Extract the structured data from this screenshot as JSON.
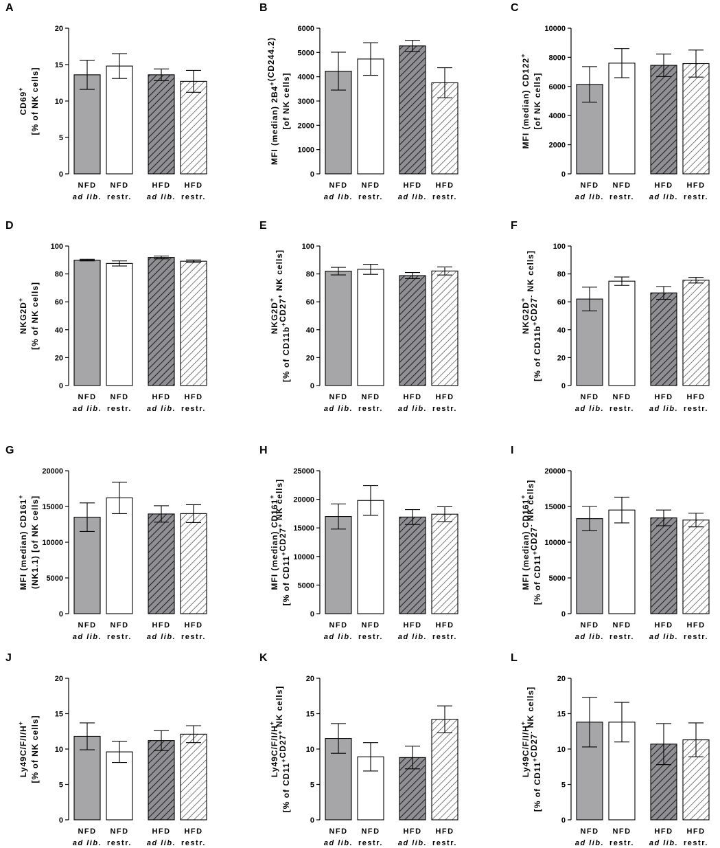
{
  "colors": {
    "nfd_ad_lib_fill": "#a6a6a8",
    "nfd_restr_fill": "#ffffff",
    "hfd_ad_lib_fill": "#909094",
    "hfd_ad_lib_hatch": "#222222",
    "hfd_restr_hatch": "#333333",
    "axis": "#000000"
  },
  "chart_data": [
    {
      "panel": "A",
      "type": "bar",
      "ylabel_lines": [
        [
          {
            "t": "CD69"
          },
          {
            "t": "+",
            "sup": true
          }
        ],
        [
          {
            "t": "[% of NK cells]"
          }
        ]
      ],
      "ylim": [
        0,
        20
      ],
      "yticks": [
        0,
        5,
        10,
        15,
        20
      ],
      "categories": [
        [
          "NFD",
          "ad lib."
        ],
        [
          "NFD",
          "restr."
        ],
        [
          "HFD",
          "ad lib."
        ],
        [
          "HFD",
          "restr."
        ]
      ],
      "values": [
        13.6,
        14.8,
        13.6,
        12.7
      ],
      "errors": [
        2.0,
        1.7,
        0.8,
        1.5
      ]
    },
    {
      "panel": "B",
      "type": "bar",
      "ylabel_lines": [
        [
          {
            "t": "MFI (median) 2B4"
          },
          {
            "t": "+",
            "sup": true
          },
          {
            "t": "(CD244.2)"
          }
        ],
        [
          {
            "t": "[of NK cells]"
          }
        ]
      ],
      "ylim": [
        0,
        6000
      ],
      "yticks": [
        0,
        1000,
        2000,
        3000,
        4000,
        5000,
        6000
      ],
      "categories": [
        [
          "NFD",
          "ad lib."
        ],
        [
          "NFD",
          "restr."
        ],
        [
          "HFD",
          "ad lib."
        ],
        [
          "HFD",
          "restr."
        ]
      ],
      "values": [
        4230,
        4730,
        5270,
        3750
      ],
      "errors": [
        780,
        670,
        230,
        620
      ]
    },
    {
      "panel": "C",
      "type": "bar",
      "ylabel_lines": [
        [
          {
            "t": "MFI (median) CD122"
          },
          {
            "t": "+",
            "sup": true
          }
        ],
        [
          {
            "t": "[of NK cells]"
          }
        ]
      ],
      "ylim": [
        0,
        10000
      ],
      "yticks": [
        0,
        2000,
        4000,
        6000,
        8000,
        10000
      ],
      "categories": [
        [
          "NFD",
          "ad lib."
        ],
        [
          "NFD",
          "restr."
        ],
        [
          "HFD",
          "ad lib."
        ],
        [
          "HFD",
          "restr."
        ]
      ],
      "values": [
        6140,
        7600,
        7450,
        7570
      ],
      "errors": [
        1220,
        1000,
        770,
        930
      ]
    },
    {
      "panel": "D",
      "type": "bar",
      "ylabel_lines": [
        [
          {
            "t": "NKG2D"
          },
          {
            "t": "+",
            "sup": true
          }
        ],
        [
          {
            "t": "[% of NK cells]"
          }
        ]
      ],
      "ylim": [
        0,
        100
      ],
      "yticks": [
        0,
        20,
        40,
        60,
        80,
        100
      ],
      "categories": [
        [
          "NFD",
          "ad lib."
        ],
        [
          "NFD",
          "restr."
        ],
        [
          "HFD",
          "ad lib."
        ],
        [
          "HFD",
          "restr."
        ]
      ],
      "values": [
        89.9,
        87.5,
        91.8,
        89.1
      ],
      "errors": [
        0.6,
        1.8,
        1.0,
        0.9
      ]
    },
    {
      "panel": "E",
      "type": "bar",
      "ylabel_lines": [
        [
          {
            "t": "NKG2D"
          },
          {
            "t": "+",
            "sup": true
          }
        ],
        [
          {
            "t": "[% of CD11b"
          },
          {
            "t": "+",
            "sup": true
          },
          {
            "t": "CD27"
          },
          {
            "t": "+",
            "sup": true
          },
          {
            "t": " NK cells]"
          }
        ]
      ],
      "ylim": [
        0,
        100
      ],
      "yticks": [
        0,
        20,
        40,
        60,
        80,
        100
      ],
      "categories": [
        [
          "NFD",
          "ad lib."
        ],
        [
          "NFD",
          "restr."
        ],
        [
          "HFD",
          "ad lib."
        ],
        [
          "HFD",
          "restr."
        ]
      ],
      "values": [
        82.0,
        83.3,
        78.8,
        82.1
      ],
      "errors": [
        2.7,
        3.6,
        2.2,
        2.9
      ]
    },
    {
      "panel": "F",
      "type": "bar",
      "ylabel_lines": [
        [
          {
            "t": "NKG2D"
          },
          {
            "t": "+",
            "sup": true
          }
        ],
        [
          {
            "t": "[% of CD11b"
          },
          {
            "t": "+",
            "sup": true
          },
          {
            "t": "CD27"
          },
          {
            "t": "-",
            "sup": true
          },
          {
            "t": " NK cells]"
          }
        ]
      ],
      "ylim": [
        0,
        100
      ],
      "yticks": [
        0,
        20,
        40,
        60,
        80,
        100
      ],
      "categories": [
        [
          "NFD",
          "ad lib."
        ],
        [
          "NFD",
          "restr."
        ],
        [
          "HFD",
          "ad lib."
        ],
        [
          "HFD",
          "restr."
        ]
      ],
      "values": [
        62.0,
        74.8,
        66.4,
        75.5
      ],
      "errors": [
        8.5,
        3.0,
        4.6,
        2.0
      ]
    },
    {
      "panel": "G",
      "type": "bar",
      "ylabel_lines": [
        [
          {
            "t": "MFI (median) CD161"
          },
          {
            "t": "+",
            "sup": true
          }
        ],
        [
          {
            "t": "(NK1.1) [of NK cells]"
          }
        ]
      ],
      "ylim": [
        0,
        20000
      ],
      "yticks": [
        0,
        5000,
        10000,
        15000,
        20000
      ],
      "categories": [
        [
          "NFD",
          "ad lib."
        ],
        [
          "NFD",
          "restr."
        ],
        [
          "HFD",
          "ad lib."
        ],
        [
          "HFD",
          "restr."
        ]
      ],
      "values": [
        13500,
        16200,
        13950,
        14000
      ],
      "errors": [
        2000,
        2200,
        1150,
        1250
      ]
    },
    {
      "panel": "H",
      "type": "bar",
      "ylabel_lines": [
        [
          {
            "t": "MFI (median) CD161"
          },
          {
            "t": "+",
            "sup": true
          }
        ],
        [
          {
            "t": "[% of CD11"
          },
          {
            "t": "+",
            "sup": true
          },
          {
            "t": "CD27"
          },
          {
            "t": "+",
            "sup": true
          },
          {
            "t": " NK cells]"
          }
        ]
      ],
      "ylim": [
        0,
        25000
      ],
      "yticks": [
        0,
        5000,
        10000,
        15000,
        20000,
        25000
      ],
      "categories": [
        [
          "NFD",
          "ad lib."
        ],
        [
          "NFD",
          "restr."
        ],
        [
          "HFD",
          "ad lib."
        ],
        [
          "HFD",
          "restr."
        ]
      ],
      "values": [
        17000,
        19800,
        16900,
        17400
      ],
      "errors": [
        2200,
        2600,
        1300,
        1300
      ]
    },
    {
      "panel": "I",
      "type": "bar",
      "ylabel_lines": [
        [
          {
            "t": "MFI (median) CD161"
          },
          {
            "t": "+",
            "sup": true
          }
        ],
        [
          {
            "t": "[% of CD11"
          },
          {
            "t": "+",
            "sup": true
          },
          {
            "t": "CD27"
          },
          {
            "t": "-",
            "sup": true
          },
          {
            "t": " NK cells]"
          }
        ]
      ],
      "ylim": [
        0,
        20000
      ],
      "yticks": [
        0,
        5000,
        10000,
        15000,
        20000
      ],
      "categories": [
        [
          "NFD",
          "ad lib."
        ],
        [
          "NFD",
          "restr."
        ],
        [
          "HFD",
          "ad lib."
        ],
        [
          "HFD",
          "restr."
        ]
      ],
      "values": [
        13300,
        14500,
        13400,
        13100
      ],
      "errors": [
        1700,
        1800,
        1100,
        950
      ]
    },
    {
      "panel": "J",
      "type": "bar",
      "ylabel_lines": [
        [
          {
            "t": "Ly49C/F/I/H"
          },
          {
            "t": "+",
            "sup": true
          }
        ],
        [
          {
            "t": "[% of NK cells]"
          }
        ]
      ],
      "ylim": [
        0,
        20
      ],
      "yticks": [
        0,
        5,
        10,
        15,
        20
      ],
      "categories": [
        [
          "NFD",
          "ad lib."
        ],
        [
          "NFD",
          "restr."
        ],
        [
          "HFD",
          "ad lib."
        ],
        [
          "HFD",
          "restr."
        ]
      ],
      "values": [
        11.8,
        9.6,
        11.2,
        12.1
      ],
      "errors": [
        1.9,
        1.5,
        1.4,
        1.2
      ]
    },
    {
      "panel": "K",
      "type": "bar",
      "ylabel_lines": [
        [
          {
            "t": "Ly49C/F/I/H"
          },
          {
            "t": "+",
            "sup": true
          }
        ],
        [
          {
            "t": "[% of CD11"
          },
          {
            "t": "+",
            "sup": true
          },
          {
            "t": "CD27"
          },
          {
            "t": "+",
            "sup": true
          },
          {
            "t": " NK cells]"
          }
        ]
      ],
      "ylim": [
        0,
        20
      ],
      "yticks": [
        0,
        5,
        10,
        15,
        20
      ],
      "categories": [
        [
          "NFD",
          "ad lib."
        ],
        [
          "NFD",
          "restr."
        ],
        [
          "HFD",
          "ad lib."
        ],
        [
          "HFD",
          "restr."
        ]
      ],
      "values": [
        11.5,
        8.9,
        8.8,
        14.2
      ],
      "errors": [
        2.1,
        2.0,
        1.6,
        1.9
      ]
    },
    {
      "panel": "L",
      "type": "bar",
      "ylabel_lines": [
        [
          {
            "t": "Ly49C/F/I/H"
          },
          {
            "t": "+",
            "sup": true
          }
        ],
        [
          {
            "t": "[% of CD11"
          },
          {
            "t": "+",
            "sup": true
          },
          {
            "t": "CD27"
          },
          {
            "t": "-",
            "sup": true
          },
          {
            "t": " NK cells]"
          }
        ]
      ],
      "ylim": [
        0,
        20
      ],
      "yticks": [
        0,
        5,
        10,
        15,
        20
      ],
      "categories": [
        [
          "NFD",
          "ad lib."
        ],
        [
          "NFD",
          "restr."
        ],
        [
          "HFD",
          "ad lib."
        ],
        [
          "HFD",
          "restr."
        ]
      ],
      "values": [
        13.8,
        13.8,
        10.7,
        11.3
      ],
      "errors": [
        3.5,
        2.8,
        2.9,
        2.4
      ]
    }
  ]
}
